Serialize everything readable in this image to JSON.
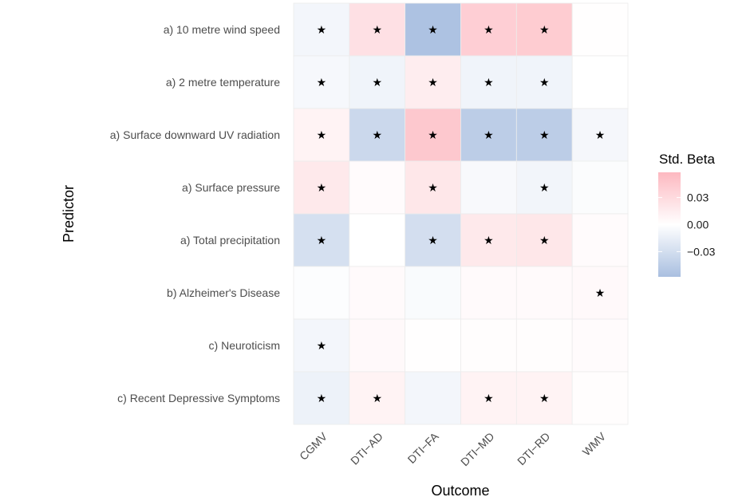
{
  "chart_data": {
    "type": "heatmap",
    "title": "",
    "xlabel": "Outcome",
    "ylabel": "Predictor",
    "x_categories": [
      "CGMV",
      "DTI−AD",
      "DTI−FA",
      "DTI−MD",
      "DTI−RD",
      "WMV"
    ],
    "y_categories": [
      "a) 10 metre wind speed",
      "a) 2 metre temperature",
      "a) Surface downward UV radiation",
      "a) Surface pressure",
      "a) Total precipitation",
      "b) Alzheimer's Disease",
      "c) Neuroticism",
      "c) Recent Depressive Symptoms"
    ],
    "values": [
      [
        -0.008,
        0.025,
        -0.055,
        0.04,
        0.042,
        0.001
      ],
      [
        -0.006,
        -0.01,
        0.015,
        -0.01,
        -0.01,
        0.0
      ],
      [
        0.01,
        -0.035,
        0.045,
        -0.045,
        -0.045,
        -0.007
      ],
      [
        0.018,
        0.003,
        0.02,
        -0.005,
        -0.009,
        -0.003
      ],
      [
        -0.028,
        0.0,
        -0.03,
        0.018,
        0.02,
        0.003
      ],
      [
        -0.002,
        0.004,
        -0.004,
        0.004,
        0.004,
        0.005
      ],
      [
        -0.008,
        0.005,
        0.001,
        0.002,
        0.002,
        0.003
      ],
      [
        -0.012,
        0.01,
        -0.008,
        0.01,
        0.01,
        0.002
      ]
    ],
    "significant": [
      [
        1,
        1,
        1,
        1,
        1,
        0
      ],
      [
        1,
        1,
        1,
        1,
        1,
        0
      ],
      [
        1,
        1,
        1,
        1,
        1,
        1
      ],
      [
        1,
        0,
        1,
        0,
        1,
        0
      ],
      [
        1,
        0,
        1,
        1,
        1,
        0
      ],
      [
        0,
        0,
        0,
        0,
        0,
        1
      ],
      [
        1,
        0,
        0,
        0,
        0,
        0
      ],
      [
        1,
        1,
        0,
        1,
        1,
        0
      ]
    ],
    "significance_marker": "★",
    "legend": {
      "title": "Std. Beta",
      "position": "right",
      "ticks": [
        0.03,
        0.0,
        -0.03
      ],
      "tick_labels": [
        "0.03",
        "0.00",
        "−0.03"
      ],
      "limits": [
        -0.058,
        0.058
      ],
      "low_color": "#a9bfe0",
      "mid_color": "#ffffff",
      "high_color": "#fdb8c0"
    },
    "grid": false
  }
}
